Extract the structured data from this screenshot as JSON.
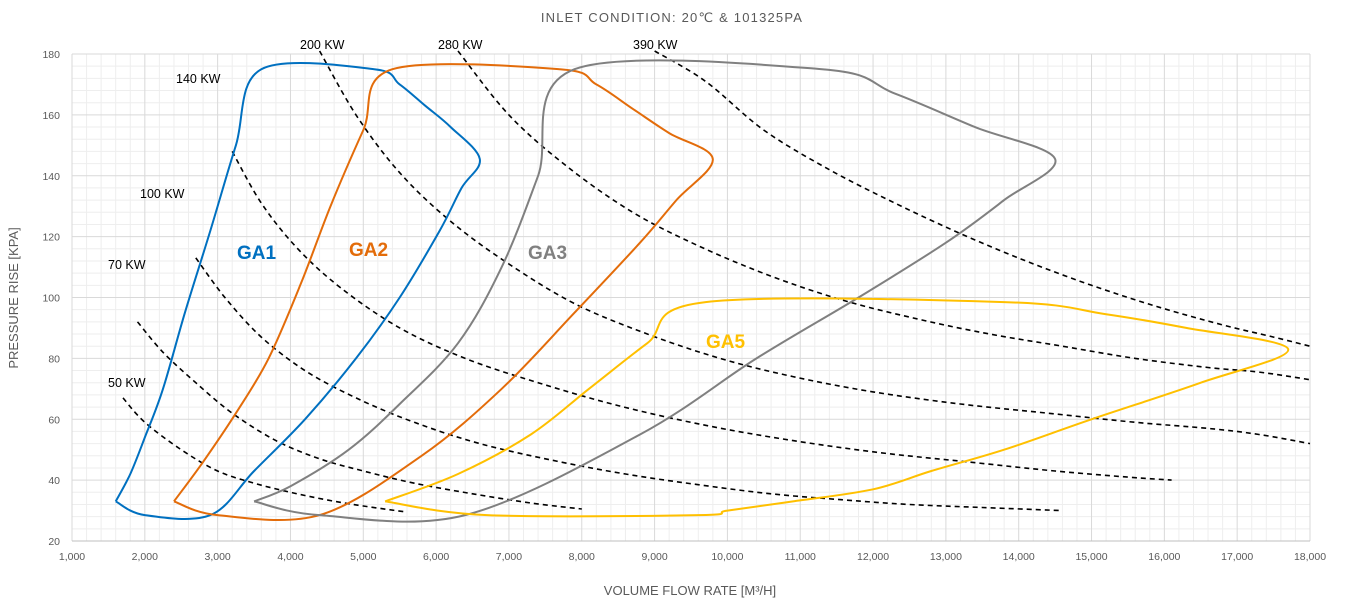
{
  "chart_data": {
    "type": "line",
    "title": "INLET CONDITION: 20℃ & 101325PA",
    "xlabel": "VOLUME FLOW RATE [M³/H]",
    "ylabel": "PRESSURE RISE [KPA]",
    "xlim": [
      1000,
      18000
    ],
    "ylim": [
      20,
      180
    ],
    "x_ticks": [
      1000,
      2000,
      3000,
      4000,
      5000,
      6000,
      7000,
      8000,
      9000,
      10000,
      11000,
      12000,
      13000,
      14000,
      15000,
      16000,
      17000,
      18000
    ],
    "x_tick_labels": [
      "1,000",
      "2,000",
      "3,000",
      "4,000",
      "5,000",
      "6,000",
      "7,000",
      "8,000",
      "9,000",
      "10,000",
      "11,000",
      "12,000",
      "13,000",
      "14,000",
      "15,000",
      "16,000",
      "17,000",
      "18,000"
    ],
    "y_ticks": [
      20,
      40,
      60,
      80,
      100,
      120,
      140,
      160,
      180
    ],
    "y_tick_labels": [
      "20",
      "40",
      "60",
      "80",
      "100",
      "120",
      "140",
      "160",
      "180"
    ],
    "grid": true,
    "regions": [
      {
        "label": "GA1",
        "color": "#0070C0",
        "points": [
          [
            1600,
            33
          ],
          [
            1800,
            42
          ],
          [
            2000,
            54
          ],
          [
            2250,
            70
          ],
          [
            2550,
            95
          ],
          [
            2900,
            122
          ],
          [
            3250,
            150
          ],
          [
            3600,
            175
          ],
          [
            5150,
            175
          ],
          [
            5500,
            170
          ],
          [
            5850,
            163
          ],
          [
            6200,
            156
          ],
          [
            6600,
            145.5
          ],
          [
            6350,
            136
          ],
          [
            6050,
            122
          ],
          [
            5500,
            100
          ],
          [
            4900,
            80
          ],
          [
            4200,
            60
          ],
          [
            3500,
            43
          ],
          [
            2900,
            28.5
          ],
          [
            2000,
            28.5
          ],
          [
            1600,
            33
          ]
        ]
      },
      {
        "label": "GA2",
        "color": "#E36C0A",
        "points": [
          [
            2400,
            33
          ],
          [
            2800,
            46
          ],
          [
            3250,
            62
          ],
          [
            3700,
            80
          ],
          [
            4150,
            105
          ],
          [
            4550,
            130
          ],
          [
            5000,
            155
          ],
          [
            5400,
            175
          ],
          [
            7700,
            175
          ],
          [
            8200,
            170
          ],
          [
            8700,
            162
          ],
          [
            9200,
            154
          ],
          [
            9800,
            145.5
          ],
          [
            9300,
            132
          ],
          [
            8800,
            118
          ],
          [
            7900,
            95
          ],
          [
            6900,
            70
          ],
          [
            5800,
            48
          ],
          [
            4400,
            28.5
          ],
          [
            3000,
            28.5
          ],
          [
            2400,
            33
          ]
        ]
      },
      {
        "label": "GA3",
        "color": "#808080",
        "points": [
          [
            3500,
            33
          ],
          [
            4000,
            38
          ],
          [
            4800,
            50
          ],
          [
            5500,
            65
          ],
          [
            6300,
            85
          ],
          [
            6900,
            110
          ],
          [
            7400,
            140
          ],
          [
            7900,
            175
          ],
          [
            11300,
            175
          ],
          [
            12300,
            167
          ],
          [
            13400,
            156
          ],
          [
            14500,
            145.5
          ],
          [
            13800,
            132
          ],
          [
            13000,
            118
          ],
          [
            11800,
            100
          ],
          [
            10400,
            80
          ],
          [
            8800,
            55
          ],
          [
            6400,
            28.5
          ],
          [
            4400,
            28.5
          ],
          [
            3500,
            33
          ]
        ]
      },
      {
        "label": "GA5",
        "color": "#FFC000",
        "points": [
          [
            5300,
            33
          ],
          [
            6300,
            42
          ],
          [
            7300,
            55
          ],
          [
            8100,
            70
          ],
          [
            8900,
            85
          ],
          [
            9700,
            98.5
          ],
          [
            13800,
            98.5
          ],
          [
            15200,
            94.5
          ],
          [
            16300,
            90
          ],
          [
            17700,
            83
          ],
          [
            16500,
            72
          ],
          [
            15000,
            60
          ],
          [
            13800,
            50
          ],
          [
            12800,
            43
          ],
          [
            12000,
            37
          ],
          [
            10900,
            33
          ],
          [
            10000,
            30
          ],
          [
            9600,
            28.5
          ],
          [
            6700,
            28.5
          ],
          [
            5300,
            33
          ]
        ]
      }
    ],
    "power_curves": [
      {
        "label": "50 KW",
        "points": [
          [
            1700,
            67
          ],
          [
            2000,
            59
          ],
          [
            2500,
            50
          ],
          [
            3000,
            43
          ],
          [
            3500,
            39
          ],
          [
            4000,
            36
          ],
          [
            4500,
            33.5
          ],
          [
            5000,
            31.5
          ],
          [
            5600,
            29.5
          ]
        ]
      },
      {
        "label": "70 KW",
        "points": [
          [
            1900,
            92
          ],
          [
            2250,
            82
          ],
          [
            2700,
            72
          ],
          [
            3200,
            62
          ],
          [
            3800,
            53
          ],
          [
            4400,
            47
          ],
          [
            5000,
            43
          ],
          [
            5700,
            39
          ],
          [
            6500,
            35.5
          ],
          [
            7300,
            32.5
          ],
          [
            8000,
            30.5
          ]
        ]
      },
      {
        "label": "100 KW",
        "points": [
          [
            2700,
            113
          ],
          [
            3100,
            100
          ],
          [
            3600,
            87
          ],
          [
            4200,
            76
          ],
          [
            4900,
            67
          ],
          [
            5700,
            59
          ],
          [
            6600,
            52
          ],
          [
            7600,
            46.5
          ],
          [
            8600,
            42
          ],
          [
            9600,
            38.5
          ],
          [
            10600,
            35.5
          ],
          [
            11600,
            33.5
          ],
          [
            12500,
            32
          ],
          [
            13500,
            31
          ],
          [
            14600,
            30
          ]
        ]
      },
      {
        "label": "140 KW",
        "points": [
          [
            3200,
            148
          ],
          [
            3600,
            131
          ],
          [
            4100,
            116
          ],
          [
            4700,
            103
          ],
          [
            5500,
            90
          ],
          [
            6400,
            80
          ],
          [
            7400,
            72
          ],
          [
            8500,
            64.5
          ],
          [
            9700,
            58
          ],
          [
            10900,
            53
          ],
          [
            12100,
            49
          ],
          [
            13300,
            46
          ],
          [
            14500,
            43
          ],
          [
            15500,
            41
          ],
          [
            16100,
            40
          ]
        ]
      },
      {
        "label": "200 KW",
        "points": [
          [
            4400,
            181
          ],
          [
            4900,
            160
          ],
          [
            5500,
            141
          ],
          [
            6200,
            125
          ],
          [
            7000,
            111
          ],
          [
            7900,
            98
          ],
          [
            8900,
            88
          ],
          [
            9900,
            80
          ],
          [
            10900,
            74
          ],
          [
            12000,
            69
          ],
          [
            13200,
            65
          ],
          [
            14400,
            62
          ],
          [
            15600,
            59
          ],
          [
            16600,
            57
          ],
          [
            17300,
            55
          ],
          [
            18000,
            52
          ]
        ]
      },
      {
        "label": "280 KW",
        "points": [
          [
            6300,
            181
          ],
          [
            7000,
            160
          ],
          [
            7800,
            143
          ],
          [
            8700,
            128
          ],
          [
            9600,
            117
          ],
          [
            10600,
            107
          ],
          [
            11600,
            99
          ],
          [
            12600,
            93
          ],
          [
            13600,
            88
          ],
          [
            14600,
            84
          ],
          [
            15600,
            80
          ],
          [
            16600,
            77
          ],
          [
            17300,
            75.5
          ],
          [
            18000,
            73
          ]
        ]
      },
      {
        "label": "390 KW",
        "points": [
          [
            9000,
            181
          ],
          [
            9700,
            171
          ],
          [
            10500,
            155
          ],
          [
            11400,
            142
          ],
          [
            12300,
            131
          ],
          [
            13200,
            121
          ],
          [
            14100,
            112
          ],
          [
            15000,
            104
          ],
          [
            15900,
            97
          ],
          [
            16800,
            91
          ],
          [
            17500,
            87
          ],
          [
            18000,
            84
          ]
        ]
      }
    ],
    "power_labels": [
      "50 KW",
      "70 KW",
      "100 KW",
      "140 KW",
      "200 KW",
      "280 KW",
      "390 KW"
    ],
    "region_labels": [
      "GA1",
      "GA2",
      "GA3",
      "GA5"
    ]
  }
}
